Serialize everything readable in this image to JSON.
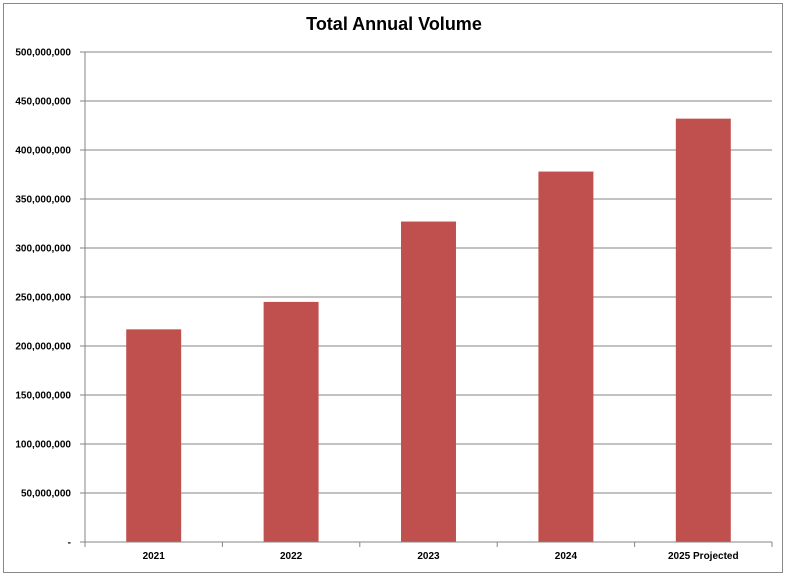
{
  "chart_data": {
    "type": "bar",
    "title": "Total Annual Volume",
    "xlabel": "",
    "ylabel": "",
    "categories": [
      "2021",
      "2022",
      "2023",
      "2024",
      "2025 Projected"
    ],
    "values": [
      217000000,
      245000000,
      327000000,
      378000000,
      432000000
    ],
    "ylim": [
      0,
      500000000
    ],
    "y_ticks": [
      {
        "value": 0,
        "label": "-"
      },
      {
        "value": 50000000,
        "label": "50,000,000"
      },
      {
        "value": 100000000,
        "label": "100,000,000"
      },
      {
        "value": 150000000,
        "label": "150,000,000"
      },
      {
        "value": 200000000,
        "label": "200,000,000"
      },
      {
        "value": 250000000,
        "label": "250,000,000"
      },
      {
        "value": 300000000,
        "label": "300,000,000"
      },
      {
        "value": 350000000,
        "label": "350,000,000"
      },
      {
        "value": 400000000,
        "label": "400,000,000"
      },
      {
        "value": 450000000,
        "label": "450,000,000"
      },
      {
        "value": 500000000,
        "label": "500,000,000"
      }
    ],
    "grid": true,
    "legend": "none",
    "bar_color": "#C0504D"
  }
}
